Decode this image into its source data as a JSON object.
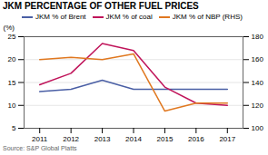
{
  "chart_data": {
    "type": "line",
    "title": "JKM PERCENTAGE OF OTHER FUEL PRICES",
    "source": "Source: S&P Global Platts",
    "ylabel": "(%)",
    "x": [
      2011,
      2012,
      2013,
      2014,
      2015,
      2016,
      2017
    ],
    "xlim": [
      2010.5,
      2017.5
    ],
    "xticks": [
      2011,
      2012,
      2013,
      2014,
      2015,
      2016,
      2017
    ],
    "ylim": [
      5,
      25
    ],
    "yticks": [
      5,
      10,
      15,
      20,
      25
    ],
    "y2lim": [
      100,
      180
    ],
    "y2ticks": [
      100,
      120,
      140,
      160,
      180
    ],
    "grid": true,
    "legend": "upper left",
    "series": [
      {
        "name": "JKM % of Brent",
        "color": "#4a5fa5",
        "values": [
          13.0,
          13.5,
          15.5,
          13.5,
          13.5,
          13.5,
          13.5
        ]
      },
      {
        "name": "JKM % of coal",
        "color": "#c0145a",
        "values": [
          14.5,
          17.0,
          23.5,
          22.0,
          14.0,
          10.5,
          10.0
        ]
      },
      {
        "name": "JKM % of NBP (RHS)",
        "color": "#e07820",
        "values": [
          160,
          162,
          160,
          165,
          115,
          122,
          122
        ],
        "axis": "y2"
      }
    ]
  }
}
